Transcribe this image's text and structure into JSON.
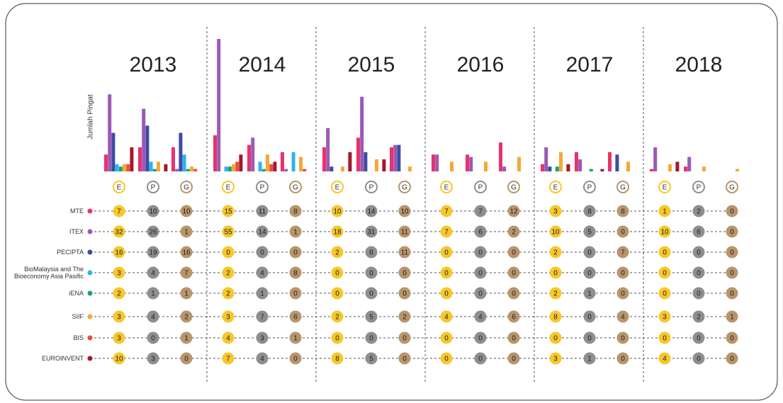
{
  "chart_data": {
    "type": "bar",
    "y_label": "Jumlah Pingat",
    "years": [
      "2013",
      "2014",
      "2015",
      "2016",
      "2017",
      "2018"
    ],
    "medals": [
      "E",
      "P",
      "G"
    ],
    "medal_colors": [
      "#f7c72b",
      "#8e8e8e",
      "#b8956b"
    ],
    "series": [
      {
        "name": "MTE",
        "color": "#e8336b",
        "values": [
          [
            7,
            10,
            10
          ],
          [
            15,
            11,
            8
          ],
          [
            10,
            14,
            10
          ],
          [
            7,
            7,
            12
          ],
          [
            3,
            8,
            8
          ],
          [
            1,
            2,
            0
          ]
        ]
      },
      {
        "name": "ITEX",
        "color": "#9b59b6",
        "values": [
          [
            32,
            26,
            1
          ],
          [
            55,
            14,
            1
          ],
          [
            18,
            31,
            11
          ],
          [
            7,
            6,
            2
          ],
          [
            10,
            5,
            0
          ],
          [
            10,
            6,
            0
          ]
        ]
      },
      {
        "name": "PECIPTA",
        "color": "#3c4ca3",
        "values": [
          [
            16,
            19,
            16
          ],
          [
            0,
            0,
            0
          ],
          [
            2,
            8,
            11
          ],
          [
            0,
            0,
            0
          ],
          [
            2,
            0,
            7
          ],
          [
            0,
            0,
            0
          ]
        ]
      },
      {
        "name": "BioMalaysia and The Bioeconomy Asia Pasific",
        "color": "#2bb5ea",
        "values": [
          [
            3,
            4,
            7
          ],
          [
            2,
            4,
            8
          ],
          [
            0,
            0,
            0
          ],
          [
            0,
            0,
            0
          ],
          [
            0,
            0,
            0
          ],
          [
            0,
            0,
            0
          ]
        ]
      },
      {
        "name": "iENA",
        "color": "#17a36f",
        "values": [
          [
            2,
            1,
            1
          ],
          [
            2,
            1,
            0
          ],
          [
            0,
            0,
            0
          ],
          [
            0,
            0,
            0
          ],
          [
            2,
            1,
            0
          ],
          [
            0,
            0,
            0
          ]
        ]
      },
      {
        "name": "SIIF",
        "color": "#f5a834",
        "values": [
          [
            3,
            4,
            2
          ],
          [
            3,
            7,
            6
          ],
          [
            2,
            5,
            2
          ],
          [
            4,
            4,
            6
          ],
          [
            8,
            0,
            4
          ],
          [
            3,
            2,
            1
          ]
        ]
      },
      {
        "name": "BIS",
        "color": "#e8503c",
        "values": [
          [
            3,
            0,
            1
          ],
          [
            4,
            3,
            1
          ],
          [
            0,
            0,
            0
          ],
          [
            0,
            0,
            0
          ],
          [
            0,
            0,
            0
          ],
          [
            0,
            0,
            0
          ]
        ]
      },
      {
        "name": "EUROINVENT",
        "color": "#a3182e",
        "values": [
          [
            10,
            3,
            0
          ],
          [
            7,
            4,
            0
          ],
          [
            8,
            5,
            0
          ],
          [
            0,
            0,
            0
          ],
          [
            3,
            1,
            0
          ],
          [
            4,
            0,
            0
          ]
        ]
      }
    ]
  }
}
